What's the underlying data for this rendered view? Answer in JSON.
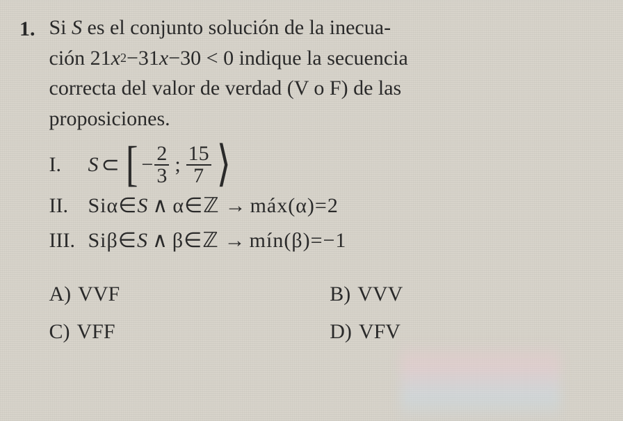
{
  "question_number": "1.",
  "stem_line1": "Si  ",
  "stem_S": "S",
  "stem_line1b": "  es  el  conjunto  solución  de  la  inecua-",
  "stem_line2a": "ción  21",
  "stem_x": "x",
  "stem_sq": "2",
  "stem_line2b": "−31",
  "stem_line2c": "−30 < 0  indique  la  secuencia",
  "stem_line3": "correcta  del  valor  de  verdad  (V  o  F)  de  las",
  "stem_line4": "proposiciones.",
  "roman": {
    "i_label": "I.",
    "i_S": "S",
    "i_subset": "⊂",
    "i_neg": "−",
    "i_f1n": "2",
    "i_f1d": "3",
    "i_sep": ";",
    "i_f2n": "15",
    "i_f2d": "7",
    "ii_label": "II.",
    "ii_text_a": "Si ",
    "ii_alpha": "α",
    "ii_in": "∈",
    "ii_S": "S",
    "ii_and": "∧",
    "ii_Z": "ℤ",
    "ii_arrow": "→",
    "ii_max": "máx(",
    "ii_eq": ")=2",
    "iii_label": "III.",
    "iii_text_a": "Si ",
    "iii_beta": "β",
    "iii_min": "mín(",
    "iii_eq": ")=−1"
  },
  "options": {
    "a_label": "A)",
    "a_val": "VVF",
    "b_label": "B)",
    "b_val": "VVV",
    "c_label": "C)",
    "c_val": "VFF",
    "d_label": "D)",
    "d_val": "VFV"
  },
  "colors": {
    "bg": "#d8d4cb",
    "text": "#2a2a2a"
  }
}
